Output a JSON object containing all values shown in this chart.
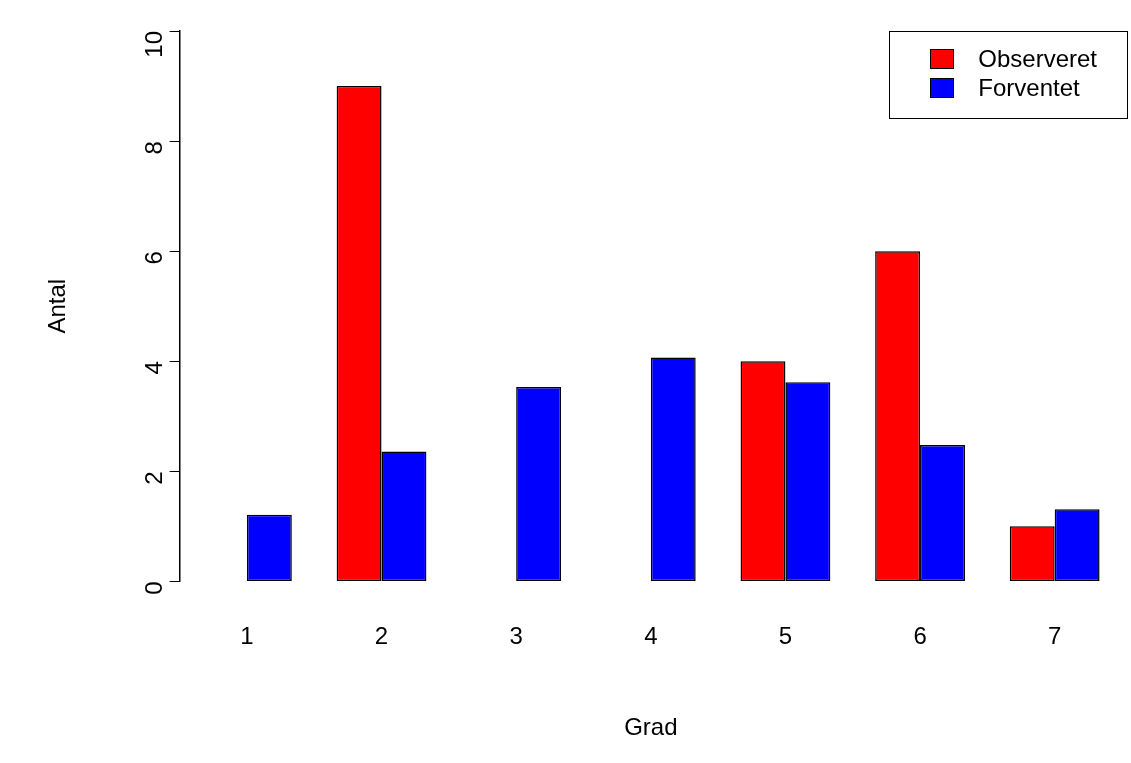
{
  "chart_data": {
    "type": "bar",
    "xlabel": "Grad",
    "ylabel": "Antal",
    "categories": [
      "1",
      "2",
      "3",
      "4",
      "5",
      "6",
      "7"
    ],
    "series": [
      {
        "name": "Observeret",
        "color": "#ff0000",
        "values": [
          0,
          9,
          0,
          0,
          4,
          6,
          1
        ]
      },
      {
        "name": "Forventet",
        "color": "#0000ff",
        "values": [
          1.21,
          2.36,
          3.53,
          4.07,
          3.62,
          2.48,
          1.31
        ]
      }
    ],
    "ylim": [
      0,
      10
    ],
    "yticks": [
      0,
      2,
      4,
      6,
      8,
      10
    ],
    "grid": false,
    "legend": "top right"
  }
}
